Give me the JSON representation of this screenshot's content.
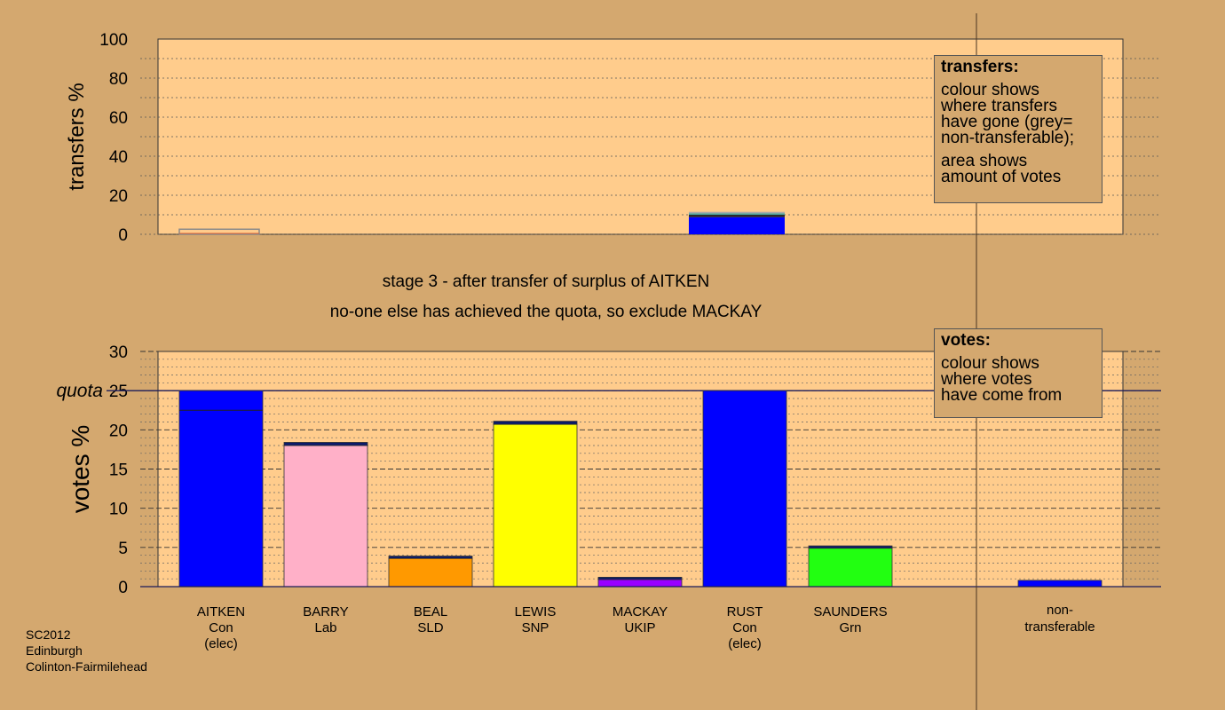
{
  "chart_data": [
    {
      "type": "bar",
      "ylabel": "transfers %",
      "ylim": [
        0,
        100
      ],
      "yticks": [
        0,
        20,
        40,
        60,
        80,
        100
      ],
      "grid": true,
      "categories": [
        "AITKEN",
        "BARRY",
        "BEAL",
        "LEWIS",
        "MACKAY",
        "RUST",
        "SAUNDERS"
      ],
      "series": [
        {
          "color": "#0000ff",
          "values": [
            0,
            0,
            0,
            0,
            0,
            8.8,
            0
          ]
        },
        {
          "color": "#2a2a2a",
          "values": [
            0,
            0,
            0,
            0,
            0,
            1.2,
            0
          ]
        },
        {
          "color": "#4da6a0",
          "values": [
            0,
            0,
            0,
            0,
            0,
            0.8,
            0
          ]
        },
        {
          "color": "#a9a9a9",
          "values": [
            0,
            0,
            0,
            0,
            0,
            0.7,
            0
          ]
        }
      ],
      "outline_values": [
        2.6,
        0,
        0,
        0,
        0,
        0,
        0
      ],
      "legend": {
        "title": "transfers:",
        "lines": [
          "colour shows",
          "where transfers",
          "have gone (grey=",
          "non-transferable);",
          "",
          "area shows",
          "amount of votes"
        ]
      }
    },
    {
      "type": "bar",
      "ylabel": "votes %",
      "ylim": [
        0,
        30
      ],
      "yticks": [
        0,
        5,
        10,
        15,
        20,
        25,
        30
      ],
      "grid": true,
      "quota": {
        "label": "quota",
        "value": 25
      },
      "categories": [
        "AITKEN",
        "BARRY",
        "BEAL",
        "LEWIS",
        "MACKAY",
        "RUST",
        "SAUNDERS"
      ],
      "category_sublabels": [
        [
          "Con",
          "(elec)"
        ],
        [
          "Lab"
        ],
        [
          "SLD"
        ],
        [
          "SNP"
        ],
        [
          "UKIP"
        ],
        [
          "Con",
          "(elec)"
        ],
        [
          "Grn"
        ]
      ],
      "extra_category": {
        "label_lines": [
          "non-",
          "transferable"
        ],
        "value": 0.8,
        "color": "#0000ff"
      },
      "series": [
        {
          "name": "first",
          "colors": [
            "#0000ff",
            "#ffb0c8",
            "#ff9900",
            "#ffff00",
            "#9900ff",
            "#0000ff",
            "#22ff11"
          ],
          "values": [
            25,
            18,
            3.6,
            20.7,
            0.9,
            25,
            4.9
          ]
        },
        {
          "name": "transferred",
          "colors": [
            "#0000ff",
            "#0a1a6a",
            "#0a1a6a",
            "#0a1a6a",
            "#0a1a6a",
            "#0000ff",
            "#0a1a6a"
          ],
          "values": [
            0,
            0.4,
            0.3,
            0.4,
            0.3,
            0,
            0.3
          ]
        }
      ],
      "inner_line": {
        "category": "AITKEN",
        "value": 22.5
      },
      "legend": {
        "title": "votes:",
        "lines": [
          "colour shows",
          "where votes",
          "have come from"
        ]
      }
    }
  ],
  "stage_text": {
    "line1": "stage 3 - after transfer of surplus of AITKEN",
    "line2": "no-one else has achieved the quota, so exclude MACKAY"
  },
  "footer": {
    "line1": "SC2012",
    "line2": "Edinburgh",
    "line3": "Colinton-Fairmilehead"
  }
}
